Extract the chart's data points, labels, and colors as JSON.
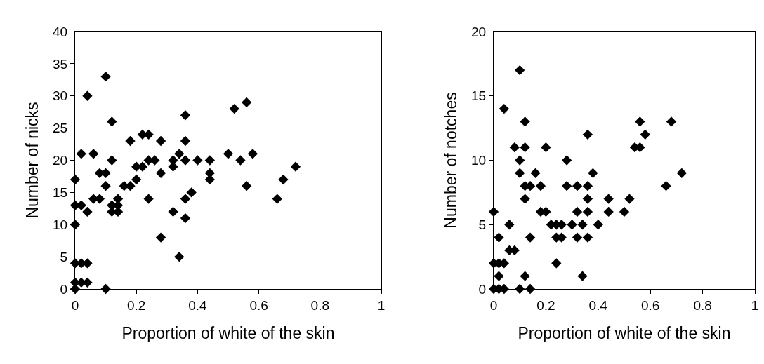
{
  "chart_data": [
    {
      "type": "scatter",
      "xlabel": "Proportion of white of the skin",
      "ylabel": "Number of nicks",
      "marker": "diamond",
      "grid": false,
      "xlim": [
        0,
        1
      ],
      "xticks": [
        0,
        0.2,
        0.4,
        0.6,
        0.8,
        1
      ],
      "ylim": [
        0,
        40
      ],
      "yticks": [
        0,
        5,
        10,
        15,
        20,
        25,
        30,
        35,
        40
      ],
      "series": [
        {
          "color": "#000000",
          "x": [
            0,
            0,
            0,
            0,
            0,
            0,
            0.02,
            0.02,
            0.02,
            0.02,
            0.04,
            0.04,
            0.04,
            0.04,
            0.06,
            0.06,
            0.08,
            0.08,
            0.1,
            0.1,
            0.1,
            0.1,
            0.12,
            0.12,
            0.12,
            0.12,
            0.14,
            0.14,
            0.14,
            0.16,
            0.18,
            0.18,
            0.2,
            0.2,
            0.22,
            0.22,
            0.24,
            0.24,
            0.24,
            0.26,
            0.28,
            0.28,
            0.28,
            0.32,
            0.32,
            0.32,
            0.34,
            0.34,
            0.36,
            0.36,
            0.36,
            0.36,
            0.36,
            0.38,
            0.4,
            0.44,
            0.44,
            0.44,
            0.5,
            0.52,
            0.54,
            0.56,
            0.56,
            0.58,
            0.66,
            0.68,
            0.72
          ],
          "values": [
            0,
            1,
            4,
            10,
            13,
            17,
            1,
            4,
            13,
            21,
            1,
            4,
            12,
            30,
            14,
            21,
            14,
            18,
            0,
            16,
            18,
            33,
            12,
            13,
            20,
            26,
            12,
            13,
            14,
            16,
            16,
            23,
            17,
            19,
            19,
            24,
            14,
            20,
            24,
            20,
            8,
            18,
            23,
            12,
            19,
            20,
            5,
            21,
            11,
            14,
            20,
            23,
            27,
            15,
            20,
            17,
            18,
            20,
            21,
            28,
            20,
            29,
            16,
            21,
            14,
            17,
            19
          ]
        }
      ]
    },
    {
      "type": "scatter",
      "xlabel": "Proportion of white of the skin",
      "ylabel": "Number of notches",
      "marker": "diamond",
      "grid": false,
      "xlim": [
        0,
        1
      ],
      "xticks": [
        0,
        0.2,
        0.4,
        0.6,
        0.8,
        1
      ],
      "ylim": [
        0,
        20
      ],
      "yticks": [
        0,
        5,
        10,
        15,
        20
      ],
      "series": [
        {
          "color": "#000000",
          "x": [
            0,
            0,
            0,
            0.02,
            0.02,
            0.02,
            0.02,
            0.04,
            0.04,
            0.04,
            0.06,
            0.06,
            0.08,
            0.08,
            0.1,
            0.1,
            0.1,
            0.1,
            0.12,
            0.12,
            0.12,
            0.12,
            0.12,
            0.14,
            0.14,
            0.14,
            0.16,
            0.18,
            0.18,
            0.2,
            0.2,
            0.22,
            0.24,
            0.24,
            0.24,
            0.26,
            0.26,
            0.28,
            0.28,
            0.3,
            0.32,
            0.32,
            0.32,
            0.34,
            0.34,
            0.36,
            0.36,
            0.36,
            0.36,
            0.36,
            0.38,
            0.4,
            0.44,
            0.44,
            0.5,
            0.52,
            0.54,
            0.56,
            0.56,
            0.58,
            0.66,
            0.68,
            0.72
          ],
          "values": [
            0,
            2,
            6,
            0,
            1,
            2,
            4,
            0,
            2,
            14,
            5,
            3,
            3,
            11,
            0,
            9,
            10,
            17,
            1,
            7,
            8,
            11,
            13,
            0,
            4,
            8,
            9,
            8,
            6,
            6,
            11,
            5,
            2,
            4,
            5,
            4,
            5,
            8,
            10,
            5,
            4,
            6,
            8,
            1,
            5,
            4,
            6,
            7,
            8,
            12,
            9,
            5,
            6,
            7,
            6,
            7,
            11,
            11,
            13,
            12,
            8,
            13,
            9
          ]
        }
      ]
    }
  ]
}
